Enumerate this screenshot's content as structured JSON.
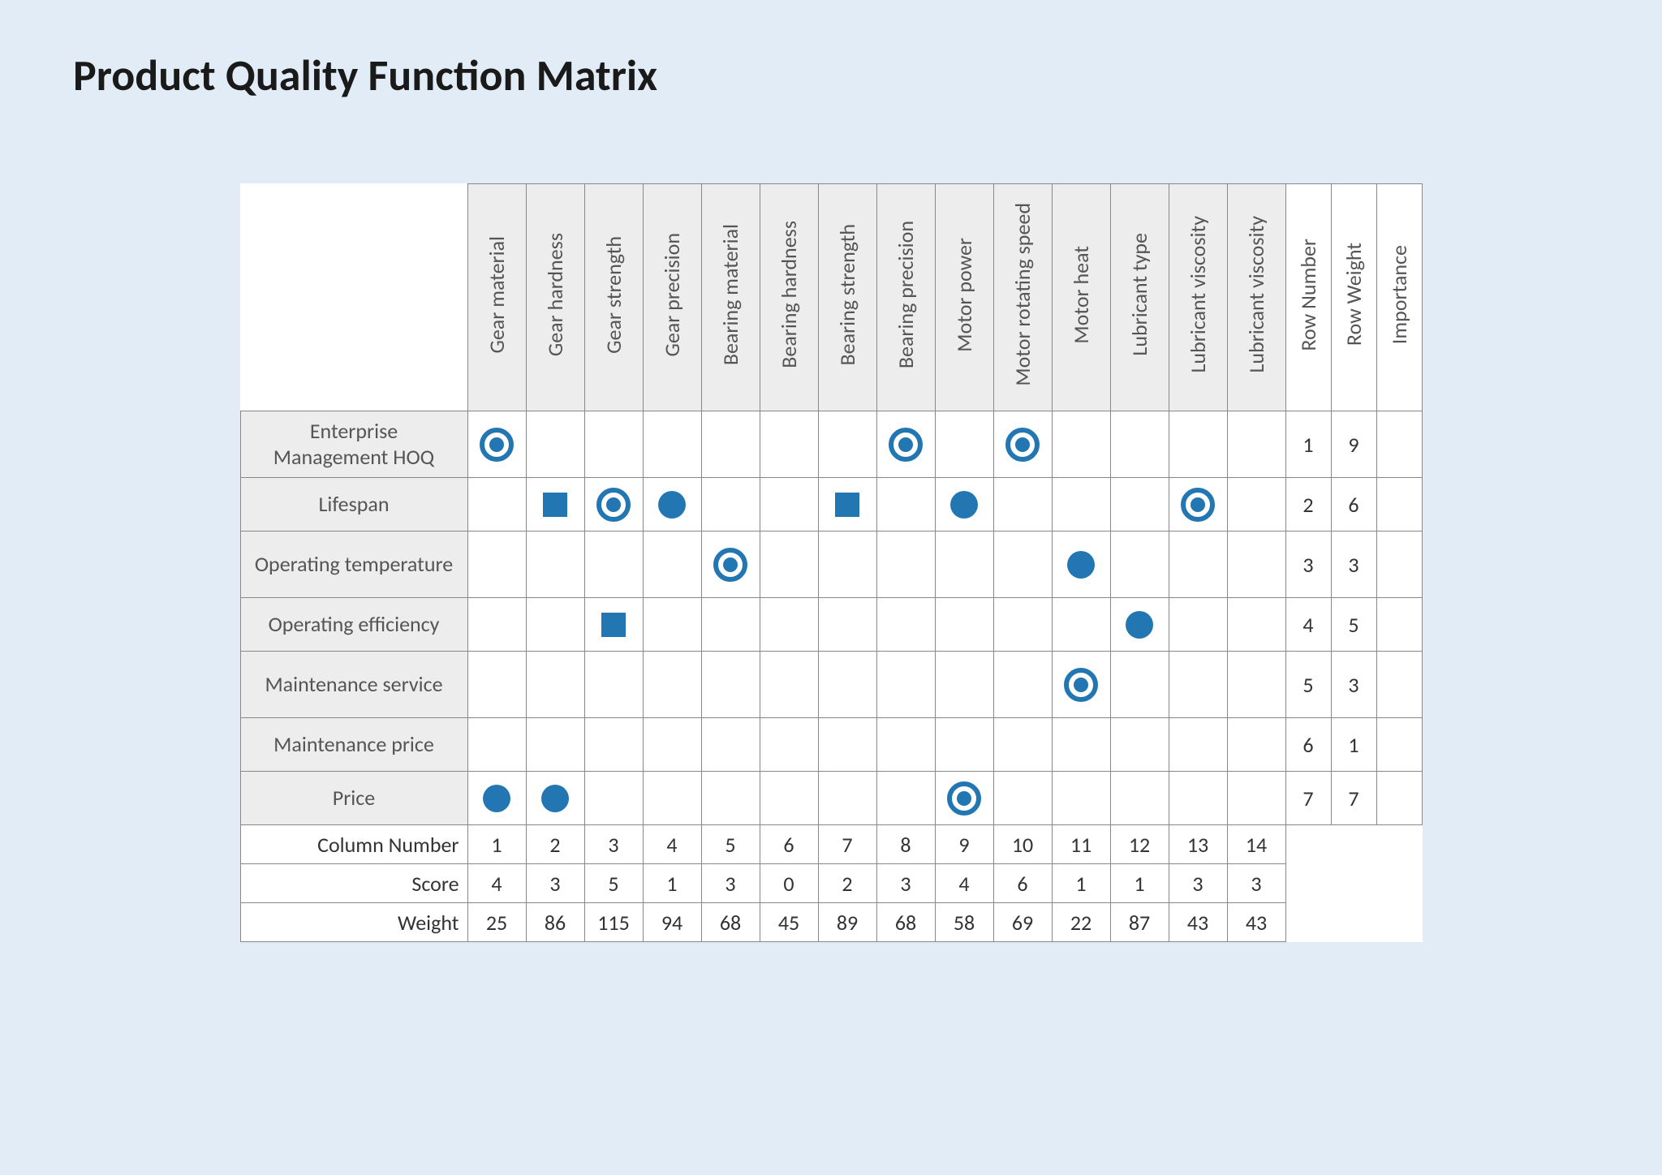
{
  "title": "Product Quality Function Matrix",
  "symbol_color": "#2277b3",
  "background_color": "#e1ecf7",
  "header_bg": "#ededed",
  "border_color": "#888888",
  "columns": [
    "Gear material",
    "Gear hardness",
    "Gear strength",
    "Gear precision",
    "Bearing material",
    "Bearing hardness",
    "Bearing strength",
    "Bearing precision",
    "Motor power",
    "Motor rotating speed",
    "Motor heat",
    "Lubricant type",
    "Lubricant viscosity",
    "Lubricant viscosity"
  ],
  "meta_columns": [
    "Row Number",
    "Row Weight",
    "Importance"
  ],
  "rows": [
    {
      "label": "Enterprise Management HOQ",
      "tall": true,
      "cells": [
        "target",
        "",
        "",
        "",
        "",
        "",
        "",
        "target",
        "",
        "target",
        "",
        "",
        "",
        ""
      ],
      "row_number": "1",
      "row_weight": "9",
      "importance": ""
    },
    {
      "label": "Lifespan",
      "tall": false,
      "cells": [
        "",
        "square",
        "target",
        "circle",
        "",
        "",
        "square",
        "",
        "circle",
        "",
        "",
        "",
        "target",
        ""
      ],
      "row_number": "2",
      "row_weight": "6",
      "importance": ""
    },
    {
      "label": "Operating temperature",
      "tall": true,
      "cells": [
        "",
        "",
        "",
        "",
        "target",
        "",
        "",
        "",
        "",
        "",
        "circle",
        "",
        "",
        ""
      ],
      "row_number": "3",
      "row_weight": "3",
      "importance": ""
    },
    {
      "label": "Operating efficiency",
      "tall": false,
      "cells": [
        "",
        "",
        "square",
        "",
        "",
        "",
        "",
        "",
        "",
        "",
        "",
        "circle",
        "",
        ""
      ],
      "row_number": "4",
      "row_weight": "5",
      "importance": ""
    },
    {
      "label": "Maintenance service",
      "tall": true,
      "cells": [
        "",
        "",
        "",
        "",
        "",
        "",
        "",
        "",
        "",
        "",
        "target",
        "",
        "",
        ""
      ],
      "row_number": "5",
      "row_weight": "3",
      "importance": ""
    },
    {
      "label": "Maintenance price",
      "tall": false,
      "cells": [
        "",
        "",
        "",
        "",
        "",
        "",
        "",
        "",
        "",
        "",
        "",
        "",
        "",
        ""
      ],
      "row_number": "6",
      "row_weight": "1",
      "importance": ""
    },
    {
      "label": "Price",
      "tall": false,
      "cells": [
        "circle",
        "circle",
        "",
        "",
        "",
        "",
        "",
        "",
        "target",
        "",
        "",
        "",
        "",
        ""
      ],
      "row_number": "7",
      "row_weight": "7",
      "importance": ""
    }
  ],
  "summary_rows": [
    {
      "label": "Column Number",
      "values": [
        "1",
        "2",
        "3",
        "4",
        "5",
        "6",
        "7",
        "8",
        "9",
        "10",
        "11",
        "12",
        "13",
        "14"
      ]
    },
    {
      "label": "Score",
      "values": [
        "4",
        "3",
        "5",
        "1",
        "3",
        "0",
        "2",
        "3",
        "4",
        "6",
        "1",
        "1",
        "3",
        "3"
      ]
    },
    {
      "label": "Weight",
      "values": [
        "25",
        "86",
        "115",
        "94",
        "68",
        "45",
        "89",
        "68",
        "58",
        "69",
        "22",
        "87",
        "43",
        "43"
      ]
    }
  ],
  "symbols": {
    "target": {
      "type": "target",
      "outer_r": 18,
      "inner_r": 9,
      "stroke_w": 6
    },
    "circle": {
      "type": "circle",
      "r": 17
    },
    "square": {
      "type": "square",
      "size": 30
    }
  }
}
